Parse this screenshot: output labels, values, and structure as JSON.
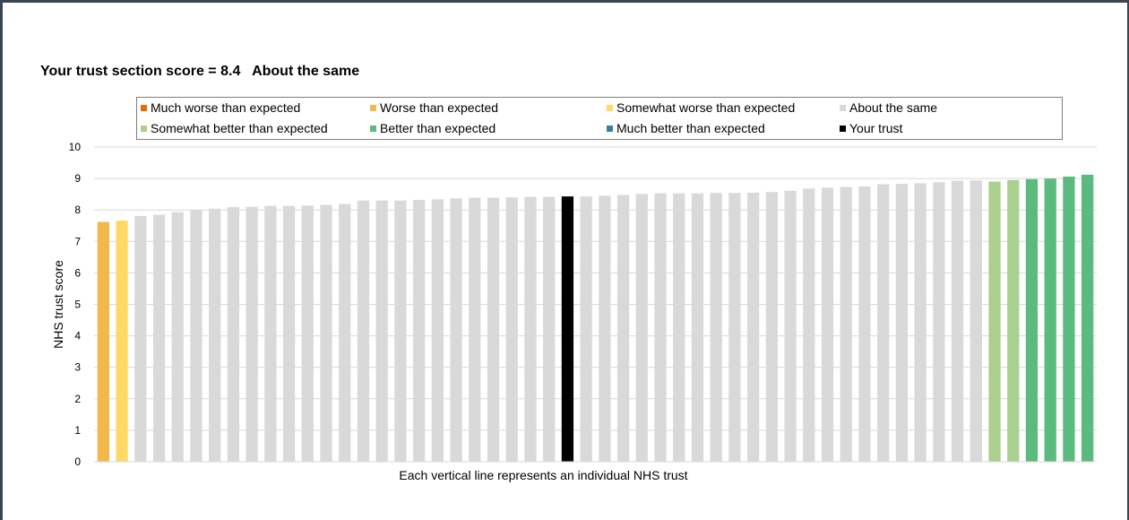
{
  "chart_data": {
    "type": "bar",
    "title": "Your trust section score = 8.4   About the same",
    "xlabel": "Each vertical line represents an individual NHS trust",
    "ylabel": "NHS trust score",
    "ylim": [
      0,
      10
    ],
    "yticks": [
      "0",
      "1",
      "2",
      "3",
      "4",
      "5",
      "6",
      "7",
      "8",
      "9",
      "10"
    ],
    "grid": true,
    "legend_position": "top",
    "legend": [
      {
        "label": "Much worse than expected",
        "category": "much_worse"
      },
      {
        "label": "Worse than expected",
        "category": "worse"
      },
      {
        "label": "Somewhat worse than expected",
        "category": "somewhat_worse"
      },
      {
        "label": "About the same",
        "category": "same"
      },
      {
        "label": "Somewhat better than expected",
        "category": "somewhat_better"
      },
      {
        "label": "Better than expected",
        "category": "better"
      },
      {
        "label": "Much better than expected",
        "category": "much_better"
      },
      {
        "label": "Your trust",
        "category": "your_trust"
      }
    ],
    "category_colors": {
      "much_worse": "#e46c0a",
      "worse": "#f2b84b",
      "somewhat_worse": "#ffd966",
      "same": "#d9d9d9",
      "somewhat_better": "#a9d08e",
      "better": "#5bba7e",
      "much_better": "#31849b",
      "your_trust": "#000000"
    },
    "bars": [
      {
        "value": 7.62,
        "category": "worse"
      },
      {
        "value": 7.66,
        "category": "somewhat_worse"
      },
      {
        "value": 7.81,
        "category": "same"
      },
      {
        "value": 7.85,
        "category": "same"
      },
      {
        "value": 7.93,
        "category": "same"
      },
      {
        "value": 8.0,
        "category": "same"
      },
      {
        "value": 8.04,
        "category": "same"
      },
      {
        "value": 8.09,
        "category": "same"
      },
      {
        "value": 8.1,
        "category": "same"
      },
      {
        "value": 8.13,
        "category": "same"
      },
      {
        "value": 8.13,
        "category": "same"
      },
      {
        "value": 8.14,
        "category": "same"
      },
      {
        "value": 8.16,
        "category": "same"
      },
      {
        "value": 8.19,
        "category": "same"
      },
      {
        "value": 8.3,
        "category": "same"
      },
      {
        "value": 8.3,
        "category": "same"
      },
      {
        "value": 8.3,
        "category": "same"
      },
      {
        "value": 8.32,
        "category": "same"
      },
      {
        "value": 8.34,
        "category": "same"
      },
      {
        "value": 8.37,
        "category": "same"
      },
      {
        "value": 8.39,
        "category": "same"
      },
      {
        "value": 8.39,
        "category": "same"
      },
      {
        "value": 8.4,
        "category": "same"
      },
      {
        "value": 8.42,
        "category": "same"
      },
      {
        "value": 8.42,
        "category": "same"
      },
      {
        "value": 8.43,
        "category": "your_trust"
      },
      {
        "value": 8.43,
        "category": "same"
      },
      {
        "value": 8.45,
        "category": "same"
      },
      {
        "value": 8.48,
        "category": "same"
      },
      {
        "value": 8.51,
        "category": "same"
      },
      {
        "value": 8.53,
        "category": "same"
      },
      {
        "value": 8.53,
        "category": "same"
      },
      {
        "value": 8.53,
        "category": "same"
      },
      {
        "value": 8.54,
        "category": "same"
      },
      {
        "value": 8.54,
        "category": "same"
      },
      {
        "value": 8.55,
        "category": "same"
      },
      {
        "value": 8.57,
        "category": "same"
      },
      {
        "value": 8.61,
        "category": "same"
      },
      {
        "value": 8.68,
        "category": "same"
      },
      {
        "value": 8.71,
        "category": "same"
      },
      {
        "value": 8.73,
        "category": "same"
      },
      {
        "value": 8.75,
        "category": "same"
      },
      {
        "value": 8.82,
        "category": "same"
      },
      {
        "value": 8.83,
        "category": "same"
      },
      {
        "value": 8.85,
        "category": "same"
      },
      {
        "value": 8.88,
        "category": "same"
      },
      {
        "value": 8.93,
        "category": "same"
      },
      {
        "value": 8.94,
        "category": "same"
      },
      {
        "value": 8.9,
        "category": "somewhat_better"
      },
      {
        "value": 8.95,
        "category": "somewhat_better"
      },
      {
        "value": 8.98,
        "category": "better"
      },
      {
        "value": 9.0,
        "category": "better"
      },
      {
        "value": 9.06,
        "category": "better"
      },
      {
        "value": 9.12,
        "category": "better"
      }
    ]
  }
}
